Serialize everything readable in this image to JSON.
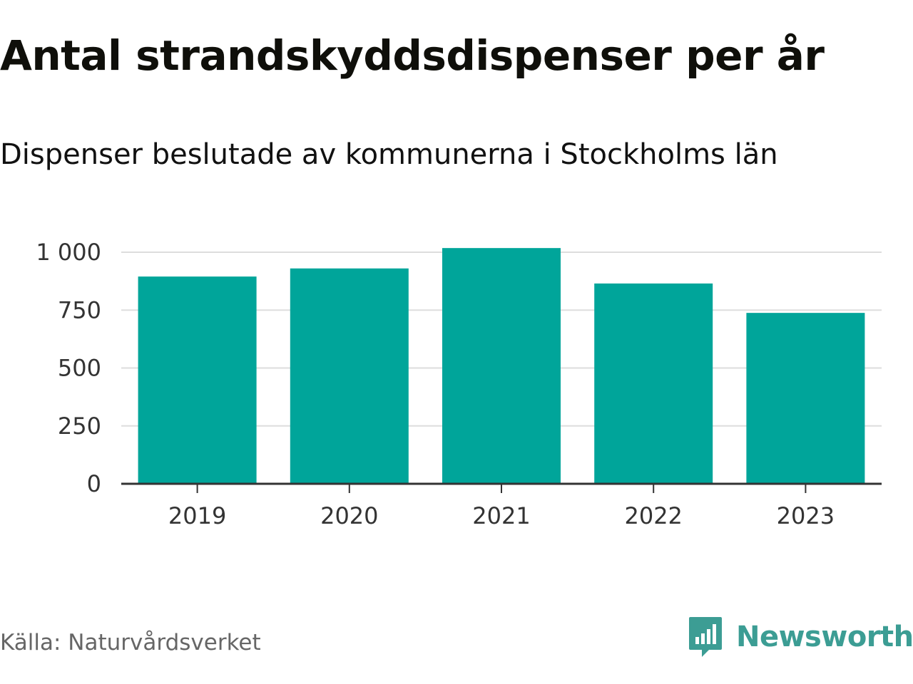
{
  "title": "Antal strandskyddsdispenser per år",
  "subtitle": "Dispenser beslutade av kommunerna i Stockholms län",
  "source": "Källa: Naturvårdsverket",
  "brand": {
    "name": "Newsworthy",
    "logo_icon": "bar-chart-speech-bubble-icon",
    "color": "#3c9d94"
  },
  "colors": {
    "bar": "#00a59a",
    "grid": "#dddddd",
    "axis": "#333333",
    "tick_text": "#333333"
  },
  "chart_data": {
    "type": "bar",
    "title": "Antal strandskyddsdispenser per år",
    "xlabel": "",
    "ylabel": "",
    "categories": [
      "2019",
      "2020",
      "2021",
      "2022",
      "2023"
    ],
    "values": [
      895,
      930,
      1018,
      865,
      738
    ],
    "ylim": [
      0,
      1000
    ],
    "yticks": [
      0,
      250,
      500,
      750,
      1000
    ],
    "ytick_labels": [
      "0",
      "250",
      "500",
      "750",
      "1 000"
    ],
    "grid": true,
    "legend": "none"
  }
}
